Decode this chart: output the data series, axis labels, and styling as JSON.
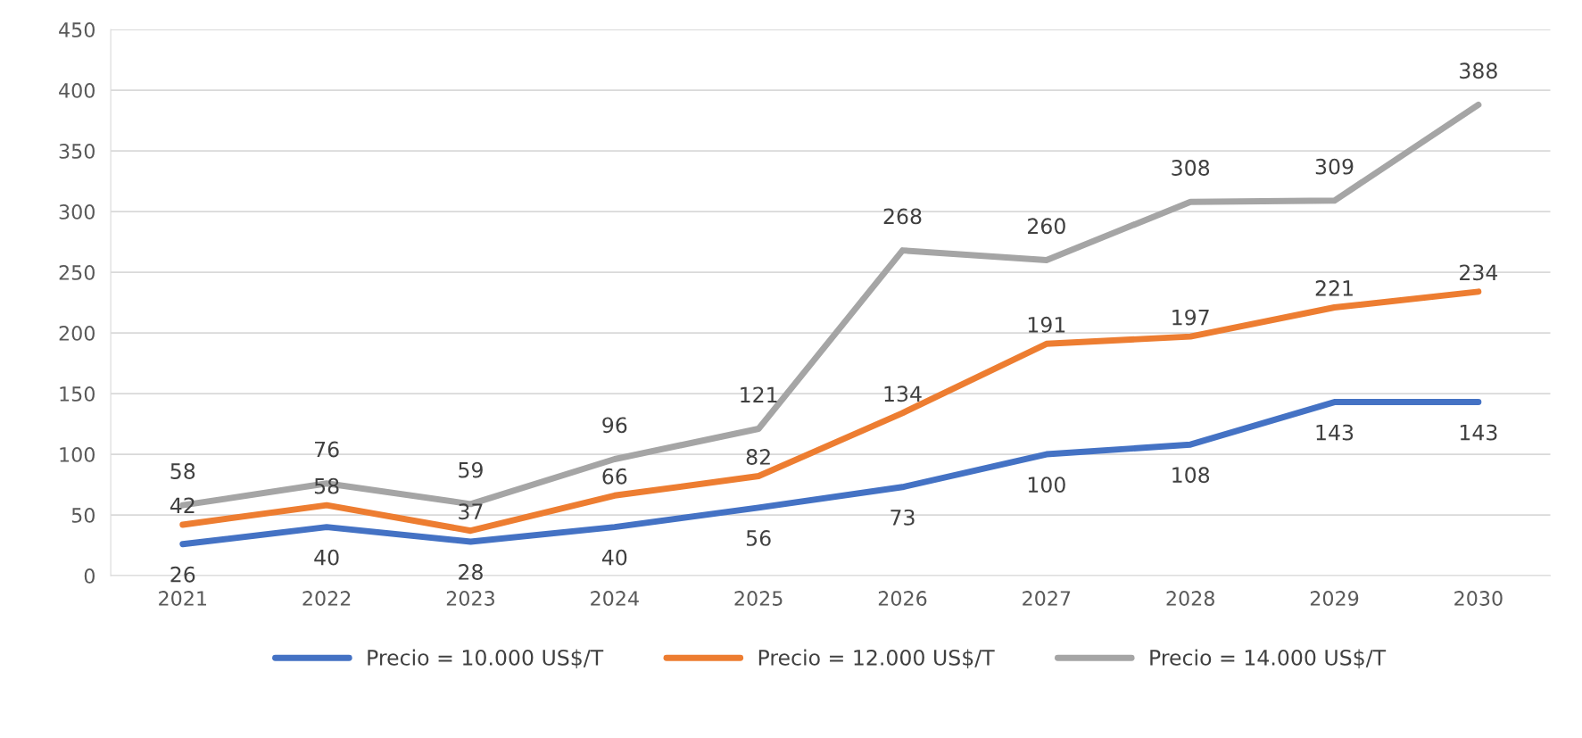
{
  "chart_data": {
    "type": "line",
    "categories": [
      "2021",
      "2022",
      "2023",
      "2024",
      "2025",
      "2026",
      "2027",
      "2028",
      "2029",
      "2030"
    ],
    "series": [
      {
        "name": "Precio = 10.000 US$/T",
        "color": "#4472c4",
        "values": [
          26,
          40,
          28,
          40,
          56,
          73,
          100,
          108,
          143,
          143
        ]
      },
      {
        "name": "Precio = 12.000 US$/T",
        "color": "#ed7d31",
        "values": [
          42,
          58,
          37,
          66,
          82,
          134,
          191,
          197,
          221,
          234
        ]
      },
      {
        "name": "Precio = 14.000 US$/T",
        "color": "#a5a5a5",
        "values": [
          58,
          76,
          59,
          96,
          121,
          268,
          260,
          308,
          309,
          388
        ]
      }
    ],
    "ylim": [
      0,
      450
    ],
    "yticks": [
      0,
      50,
      100,
      150,
      200,
      250,
      300,
      350,
      400,
      450
    ],
    "grid": "y",
    "legend": "bottom",
    "data_labels": true,
    "marker": "none",
    "line_style": "solid"
  }
}
